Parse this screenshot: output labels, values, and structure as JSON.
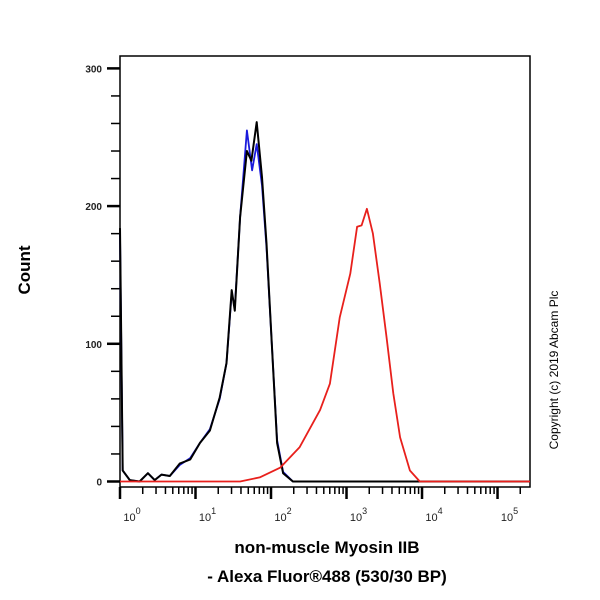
{
  "chart_data": {
    "type": "line",
    "title": "",
    "xlabel_line1": "non-muscle Myosin IIB",
    "xlabel_line2": "- Alexa Fluor®488 (530/30 BP)",
    "ylabel": "Count",
    "x_scale": "log",
    "x_decades": [
      0,
      1,
      2,
      3,
      4,
      5
    ],
    "xlim_log10": [
      0,
      5.43
    ],
    "ylim": [
      -4,
      309
    ],
    "y_ticks": [
      0,
      100,
      200,
      300
    ],
    "y_tick_labels": [
      "0",
      "100",
      "200",
      "300"
    ],
    "grid": false,
    "legend": "none",
    "series": [
      {
        "color": "#1a1adc",
        "x_log10": [
          0,
          0.036,
          0.13,
          0.26,
          0.37,
          0.46,
          0.55,
          0.66,
          0.79,
          0.93,
          1.06,
          1.19,
          1.32,
          1.41,
          1.48,
          1.52,
          1.59,
          1.68,
          1.75,
          1.81,
          1.88,
          1.94,
          2.01,
          2.08,
          2.16,
          2.29,
          5.43
        ],
        "y": [
          180,
          8,
          1,
          0,
          6,
          1,
          5,
          4,
          12,
          17,
          28,
          38,
          60,
          86,
          137,
          126,
          192,
          255,
          226,
          245,
          215,
          170,
          100,
          30,
          7,
          0,
          0
        ]
      },
      {
        "color": "#000000",
        "x_log10": [
          0,
          0.036,
          0.13,
          0.26,
          0.37,
          0.46,
          0.55,
          0.66,
          0.79,
          0.93,
          1.06,
          1.19,
          1.32,
          1.41,
          1.48,
          1.52,
          1.59,
          1.68,
          1.74,
          1.81,
          1.88,
          1.94,
          2.01,
          2.08,
          2.16,
          2.29,
          5.43
        ],
        "y": [
          184,
          8,
          1,
          0,
          6,
          1,
          5,
          4,
          13,
          16,
          28,
          37,
          61,
          86,
          139,
          124,
          192,
          240,
          233,
          261,
          221,
          173,
          100,
          28,
          6,
          0,
          0
        ]
      },
      {
        "color": "#e8201c",
        "x_log10": [
          0,
          1.59,
          1.85,
          2.12,
          2.38,
          2.65,
          2.78,
          2.91,
          3.05,
          3.14,
          3.2,
          3.27,
          3.35,
          3.44,
          3.53,
          3.62,
          3.71,
          3.84,
          3.97,
          5.43
        ],
        "y": [
          0,
          0,
          3,
          10,
          25,
          52,
          71,
          119,
          151,
          185,
          186,
          198,
          180,
          144,
          105,
          64,
          32,
          8,
          0,
          0
        ]
      }
    ]
  },
  "copyright": "Copyright (c) 2019 Abcam Plc"
}
